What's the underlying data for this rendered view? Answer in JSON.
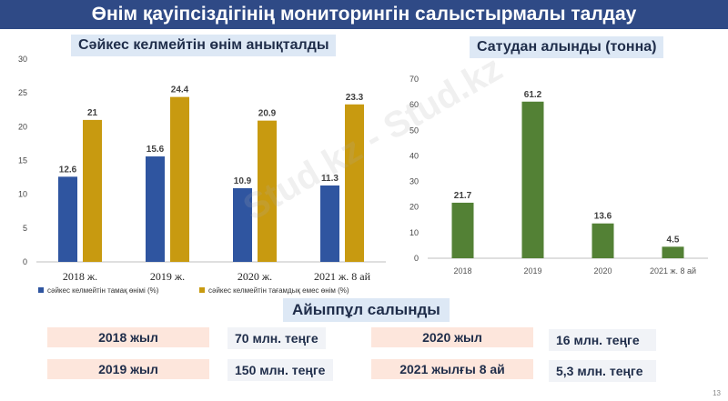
{
  "header": {
    "title": "Өнім қауіпсіздігінің мониторингін салыстырмалы талдау"
  },
  "chart_left_title": "Сәйкес келмейтін өнім анықталды",
  "chart_right_title": "Сатудан алынды (тонна)",
  "chart_data": [
    {
      "type": "bar",
      "categories": [
        "2018 ж.",
        "2019 ж.",
        "2020 ж.",
        "2021 ж. 8 ай"
      ],
      "series": [
        {
          "name": "сәйкес келмейтін тамақ өнімі (%)",
          "values": [
            12.6,
            15.6,
            10.9,
            11.3
          ],
          "color": "#2f55a0"
        },
        {
          "name": "сәйкес келмейтін тағамдық емес өнім (%)",
          "values": [
            21,
            24.4,
            20.9,
            23.3
          ],
          "color": "#c89a10"
        }
      ],
      "ylim": [
        0,
        30
      ],
      "yticks": [
        0,
        5,
        10,
        15,
        20,
        25,
        30
      ],
      "grid": false,
      "legend": "bottom"
    },
    {
      "type": "bar",
      "categories": [
        "2018",
        "2019",
        "2020",
        "2021 ж. 8 ай"
      ],
      "series": [
        {
          "values": [
            21.7,
            61.2,
            13.6,
            4.5
          ],
          "color": "#538135"
        }
      ],
      "ylim": [
        0,
        70
      ],
      "yticks": [
        0,
        10,
        20,
        30,
        40,
        50,
        60,
        70
      ],
      "grid": false
    }
  ],
  "fines": {
    "title": "Айыппұл салынды",
    "rows": [
      {
        "year": "2018 жыл",
        "amount": "70 млн. теңге"
      },
      {
        "year": "2019 жыл",
        "amount": "150 млн. теңге"
      },
      {
        "year": "2020 жыл",
        "amount": "16 млн. теңге"
      },
      {
        "year": "2021 жылғы 8 ай",
        "amount": "5,3 млн. теңге"
      }
    ]
  },
  "watermark": "Stud.kz - Stud.kz",
  "page_number": "13"
}
